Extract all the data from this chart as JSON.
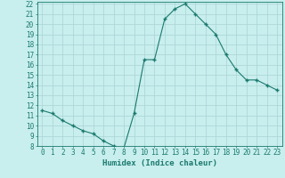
{
  "x": [
    0,
    1,
    2,
    3,
    4,
    5,
    6,
    7,
    8,
    9,
    10,
    11,
    12,
    13,
    14,
    15,
    16,
    17,
    18,
    19,
    20,
    21,
    22,
    23
  ],
  "y": [
    11.5,
    11.2,
    10.5,
    10.0,
    9.5,
    9.2,
    8.5,
    8.0,
    7.8,
    11.2,
    16.5,
    16.5,
    20.5,
    21.5,
    22.0,
    21.0,
    20.0,
    19.0,
    17.0,
    15.5,
    14.5,
    14.5,
    14.0,
    13.5
  ],
  "xlabel": "Humidex (Indice chaleur)",
  "ylim": [
    8,
    22
  ],
  "xlim": [
    -0.5,
    23.5
  ],
  "yticks": [
    8,
    9,
    10,
    11,
    12,
    13,
    14,
    15,
    16,
    17,
    18,
    19,
    20,
    21,
    22
  ],
  "xticks": [
    0,
    1,
    2,
    3,
    4,
    5,
    6,
    7,
    8,
    9,
    10,
    11,
    12,
    13,
    14,
    15,
    16,
    17,
    18,
    19,
    20,
    21,
    22,
    23
  ],
  "line_color": "#1a7a6e",
  "marker_color": "#1a7a6e",
  "bg_color": "#c8eeee",
  "grid_color": "#aad4d4",
  "tick_label_fontsize": 5.5,
  "xlabel_fontsize": 6.5
}
